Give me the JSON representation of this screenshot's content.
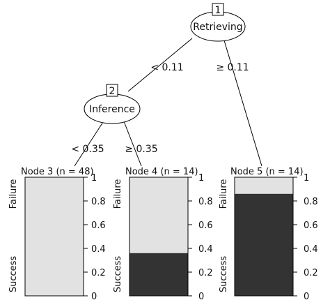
{
  "nodes": [
    {
      "id": "1",
      "label": "Retrieving"
    },
    {
      "id": "2",
      "label": "Inference"
    }
  ],
  "edges": [
    {
      "from": "1",
      "to": "2",
      "label": "< 0.11"
    },
    {
      "from": "1",
      "to": "5",
      "label": "≥ 0.11"
    },
    {
      "from": "2",
      "to": "3",
      "label": "< 0.35"
    },
    {
      "from": "2",
      "to": "4",
      "label": "≥ 0.35"
    }
  ],
  "terminals": [
    {
      "label": "Node 3 (n = 48)",
      "success_fraction": 0.0
    },
    {
      "label": "Node 4 (n = 14)",
      "success_fraction": 0.36
    },
    {
      "label": "Node 5 (n = 14)",
      "success_fraction": 0.86
    }
  ],
  "class_labels": {
    "top": "Failure",
    "bottom": "Success"
  },
  "ticks": [
    "1",
    "0.8",
    "0.6",
    "0.4",
    "0.2",
    "0"
  ],
  "colors": {
    "failure": "#e2e2e2",
    "success": "#333333",
    "line": "#000000"
  }
}
